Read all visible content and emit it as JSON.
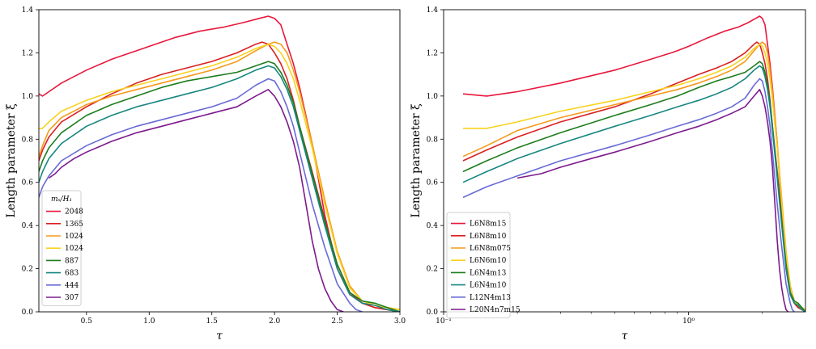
{
  "chart_data": [
    {
      "type": "line",
      "xscale": "linear",
      "xlim": [
        0.12,
        3.0
      ],
      "ylim": [
        0.0,
        1.4
      ],
      "xlabel": "τ",
      "ylabel": "Length parameter ξ",
      "xticks": [
        0.5,
        1.0,
        1.5,
        2.0,
        2.5,
        3.0
      ],
      "xtick_labels": [
        "0.5",
        "1.0",
        "1.5",
        "2.0",
        "2.5",
        "3.0"
      ],
      "yticks": [
        0.0,
        0.2,
        0.4,
        0.6,
        0.8,
        1.0,
        1.2,
        1.4
      ],
      "ytick_labels": [
        "0.0",
        "0.2",
        "0.4",
        "0.6",
        "0.8",
        "1.0",
        "1.2",
        "1.4"
      ],
      "legend_title": "mₛ/H₁",
      "legend_position": "lower-left",
      "series": [
        {
          "name": "2048",
          "color": "#e8173c",
          "x": [
            0.12,
            0.15,
            0.2,
            0.3,
            0.5,
            0.7,
            0.85,
            0.9,
            1.0,
            1.2,
            1.4,
            1.6,
            1.75,
            1.88,
            1.95,
            2.0,
            2.05,
            2.1,
            2.15,
            2.2,
            2.3,
            2.4,
            2.5,
            2.6,
            2.7,
            2.8,
            2.9,
            3.0
          ],
          "y": [
            1.01,
            1.0,
            1.02,
            1.06,
            1.12,
            1.17,
            1.2,
            1.21,
            1.23,
            1.27,
            1.3,
            1.32,
            1.34,
            1.36,
            1.37,
            1.36,
            1.33,
            1.24,
            1.15,
            1.04,
            0.78,
            0.45,
            0.2,
            0.08,
            0.04,
            0.02,
            0.01,
            0.0
          ]
        },
        {
          "name": "1365",
          "color": "#d92020",
          "x": [
            0.12,
            0.15,
            0.2,
            0.3,
            0.5,
            0.7,
            0.9,
            1.1,
            1.3,
            1.5,
            1.7,
            1.85,
            1.9,
            1.95,
            2.0,
            2.05,
            2.1,
            2.15,
            2.2,
            2.3,
            2.4,
            2.5,
            2.6,
            2.7,
            2.8,
            2.9,
            3.0
          ],
          "y": [
            0.7,
            0.75,
            0.81,
            0.88,
            0.95,
            1.01,
            1.06,
            1.1,
            1.13,
            1.16,
            1.2,
            1.24,
            1.25,
            1.24,
            1.2,
            1.15,
            1.08,
            0.98,
            0.86,
            0.65,
            0.43,
            0.22,
            0.09,
            0.04,
            0.02,
            0.01,
            0.0
          ]
        },
        {
          "name": "1024",
          "color": "#f59a1a",
          "x": [
            0.12,
            0.15,
            0.2,
            0.3,
            0.5,
            0.7,
            0.9,
            1.1,
            1.3,
            1.5,
            1.7,
            1.85,
            1.95,
            2.0,
            2.05,
            2.1,
            2.15,
            2.2,
            2.3,
            2.4,
            2.5,
            2.6,
            2.7,
            2.8,
            2.9,
            3.0
          ],
          "y": [
            0.72,
            0.77,
            0.84,
            0.9,
            0.96,
            1.0,
            1.03,
            1.06,
            1.09,
            1.12,
            1.16,
            1.21,
            1.24,
            1.25,
            1.24,
            1.2,
            1.12,
            1.02,
            0.78,
            0.52,
            0.28,
            0.12,
            0.05,
            0.03,
            0.02,
            0.01
          ]
        },
        {
          "name": "1024",
          "color": "#f7d21e",
          "x": [
            0.12,
            0.15,
            0.2,
            0.3,
            0.5,
            0.7,
            0.9,
            1.1,
            1.3,
            1.5,
            1.7,
            1.85,
            1.95,
            2.0,
            2.05,
            2.1,
            2.15,
            2.2,
            2.3,
            2.4,
            2.5,
            2.6,
            2.7,
            2.8,
            2.9,
            3.0
          ],
          "y": [
            0.85,
            0.85,
            0.88,
            0.93,
            0.98,
            1.02,
            1.05,
            1.08,
            1.11,
            1.14,
            1.18,
            1.22,
            1.24,
            1.23,
            1.2,
            1.15,
            1.08,
            0.98,
            0.76,
            0.5,
            0.27,
            0.11,
            0.05,
            0.03,
            0.02,
            0.01
          ]
        },
        {
          "name": "887",
          "color": "#1d7d1d",
          "x": [
            0.12,
            0.15,
            0.2,
            0.3,
            0.5,
            0.7,
            0.9,
            1.1,
            1.3,
            1.5,
            1.7,
            1.85,
            1.95,
            2.0,
            2.05,
            2.1,
            2.15,
            2.2,
            2.3,
            2.4,
            2.5,
            2.6,
            2.7,
            2.8,
            2.9,
            3.0
          ],
          "y": [
            0.65,
            0.7,
            0.76,
            0.83,
            0.91,
            0.96,
            1.0,
            1.04,
            1.07,
            1.09,
            1.11,
            1.14,
            1.16,
            1.15,
            1.11,
            1.05,
            0.97,
            0.86,
            0.64,
            0.42,
            0.22,
            0.09,
            0.05,
            0.04,
            0.02,
            0.0
          ]
        },
        {
          "name": "683",
          "color": "#17867f",
          "x": [
            0.12,
            0.15,
            0.2,
            0.3,
            0.5,
            0.7,
            0.9,
            1.1,
            1.3,
            1.5,
            1.7,
            1.85,
            1.95,
            2.0,
            2.05,
            2.1,
            2.15,
            2.2,
            2.3,
            2.4,
            2.5,
            2.6,
            2.7,
            2.8,
            2.9,
            3.0
          ],
          "y": [
            0.6,
            0.65,
            0.71,
            0.78,
            0.86,
            0.91,
            0.95,
            0.98,
            1.01,
            1.04,
            1.08,
            1.12,
            1.14,
            1.13,
            1.09,
            1.03,
            0.95,
            0.84,
            0.62,
            0.4,
            0.2,
            0.08,
            0.04,
            0.03,
            0.01,
            0.0
          ]
        },
        {
          "name": "444",
          "color": "#6a6ad6",
          "x": [
            0.12,
            0.15,
            0.2,
            0.3,
            0.5,
            0.7,
            0.9,
            1.1,
            1.3,
            1.5,
            1.7,
            1.85,
            1.95,
            2.0,
            2.05,
            2.1,
            2.15,
            2.2,
            2.3,
            2.4,
            2.5,
            2.6,
            2.65,
            2.7
          ],
          "y": [
            0.53,
            0.58,
            0.63,
            0.7,
            0.77,
            0.82,
            0.86,
            0.89,
            0.92,
            0.95,
            0.99,
            1.05,
            1.08,
            1.07,
            1.02,
            0.95,
            0.86,
            0.74,
            0.5,
            0.3,
            0.13,
            0.04,
            0.01,
            0.0
          ]
        },
        {
          "name": "307",
          "color": "#7d1a8c",
          "x": [
            0.2,
            0.25,
            0.3,
            0.4,
            0.5,
            0.7,
            0.9,
            1.1,
            1.3,
            1.5,
            1.7,
            1.85,
            1.95,
            2.0,
            2.05,
            2.1,
            2.15,
            2.2,
            2.25,
            2.3,
            2.35,
            2.4,
            2.45,
            2.5,
            2.55
          ],
          "y": [
            0.62,
            0.64,
            0.67,
            0.71,
            0.74,
            0.79,
            0.83,
            0.86,
            0.89,
            0.92,
            0.95,
            1.0,
            1.03,
            1.0,
            0.95,
            0.88,
            0.79,
            0.67,
            0.5,
            0.33,
            0.2,
            0.11,
            0.05,
            0.01,
            0.0
          ]
        }
      ]
    },
    {
      "type": "line",
      "xscale": "log",
      "xlim": [
        0.1,
        3.0
      ],
      "ylim": [
        0.0,
        1.4
      ],
      "xlabel": "τ",
      "ylabel": "Length parameter ξ",
      "xticks": [
        0.1,
        1.0
      ],
      "xtick_labels": [
        "10⁻¹",
        "10⁰"
      ],
      "yticks": [
        0.0,
        0.2,
        0.4,
        0.6,
        0.8,
        1.0,
        1.2,
        1.4
      ],
      "ytick_labels": [
        "0.0",
        "0.2",
        "0.4",
        "0.6",
        "0.8",
        "1.0",
        "1.2",
        "1.4"
      ],
      "legend_position": "lower-left",
      "series": [
        {
          "name": "L6N8m15",
          "color": "#e8173c",
          "x": [
            0.12,
            0.15,
            0.2,
            0.3,
            0.5,
            0.7,
            0.85,
            0.9,
            1.0,
            1.2,
            1.4,
            1.6,
            1.75,
            1.88,
            1.95,
            2.0,
            2.05,
            2.1,
            2.15,
            2.2,
            2.3,
            2.4,
            2.5,
            2.6,
            2.7,
            2.8,
            2.9,
            3.0
          ],
          "y": [
            1.01,
            1.0,
            1.02,
            1.06,
            1.12,
            1.17,
            1.2,
            1.21,
            1.23,
            1.27,
            1.3,
            1.32,
            1.34,
            1.36,
            1.37,
            1.36,
            1.33,
            1.24,
            1.15,
            1.04,
            0.78,
            0.45,
            0.2,
            0.08,
            0.04,
            0.02,
            0.01,
            0.0
          ]
        },
        {
          "name": "L6N8m10",
          "color": "#d92020",
          "x": [
            0.12,
            0.15,
            0.2,
            0.3,
            0.5,
            0.7,
            0.9,
            1.1,
            1.3,
            1.5,
            1.7,
            1.85,
            1.9,
            1.95,
            2.0,
            2.05,
            2.1,
            2.15,
            2.2,
            2.3,
            2.4,
            2.5,
            2.6,
            2.7,
            2.8,
            2.9,
            3.0
          ],
          "y": [
            0.7,
            0.75,
            0.81,
            0.88,
            0.95,
            1.01,
            1.06,
            1.1,
            1.13,
            1.16,
            1.2,
            1.24,
            1.25,
            1.24,
            1.2,
            1.15,
            1.08,
            0.98,
            0.86,
            0.65,
            0.43,
            0.22,
            0.09,
            0.04,
            0.02,
            0.01,
            0.0
          ]
        },
        {
          "name": "L6N8m075",
          "color": "#f59a1a",
          "x": [
            0.12,
            0.15,
            0.2,
            0.3,
            0.5,
            0.7,
            0.9,
            1.1,
            1.3,
            1.5,
            1.7,
            1.85,
            1.95,
            2.0,
            2.05,
            2.1,
            2.15,
            2.2,
            2.3,
            2.4,
            2.5,
            2.6,
            2.7,
            2.8,
            2.9,
            3.0
          ],
          "y": [
            0.72,
            0.77,
            0.84,
            0.9,
            0.96,
            1.0,
            1.03,
            1.06,
            1.09,
            1.12,
            1.16,
            1.21,
            1.24,
            1.25,
            1.24,
            1.2,
            1.12,
            1.02,
            0.78,
            0.52,
            0.28,
            0.12,
            0.05,
            0.03,
            0.02,
            0.01
          ]
        },
        {
          "name": "L6N6m10",
          "color": "#f7d21e",
          "x": [
            0.12,
            0.15,
            0.2,
            0.3,
            0.5,
            0.7,
            0.9,
            1.1,
            1.3,
            1.5,
            1.7,
            1.85,
            1.95,
            2.0,
            2.05,
            2.1,
            2.15,
            2.2,
            2.3,
            2.4,
            2.5,
            2.6,
            2.7,
            2.8,
            2.9,
            3.0
          ],
          "y": [
            0.85,
            0.85,
            0.88,
            0.93,
            0.98,
            1.02,
            1.05,
            1.08,
            1.11,
            1.14,
            1.18,
            1.22,
            1.24,
            1.23,
            1.2,
            1.15,
            1.08,
            0.98,
            0.76,
            0.5,
            0.27,
            0.11,
            0.05,
            0.03,
            0.02,
            0.01
          ]
        },
        {
          "name": "L6N4m13",
          "color": "#1d7d1d",
          "x": [
            0.12,
            0.15,
            0.2,
            0.3,
            0.5,
            0.7,
            0.9,
            1.1,
            1.3,
            1.5,
            1.7,
            1.85,
            1.95,
            2.0,
            2.05,
            2.1,
            2.15,
            2.2,
            2.3,
            2.4,
            2.5,
            2.6,
            2.7,
            2.8,
            2.9,
            3.0
          ],
          "y": [
            0.65,
            0.7,
            0.76,
            0.83,
            0.91,
            0.96,
            1.0,
            1.04,
            1.07,
            1.09,
            1.11,
            1.14,
            1.16,
            1.15,
            1.11,
            1.05,
            0.97,
            0.86,
            0.64,
            0.42,
            0.22,
            0.09,
            0.05,
            0.04,
            0.02,
            0.0
          ]
        },
        {
          "name": "L6N4m10",
          "color": "#17867f",
          "x": [
            0.12,
            0.15,
            0.2,
            0.3,
            0.5,
            0.7,
            0.9,
            1.1,
            1.3,
            1.5,
            1.7,
            1.85,
            1.95,
            2.0,
            2.05,
            2.1,
            2.15,
            2.2,
            2.3,
            2.4,
            2.5,
            2.6,
            2.7,
            2.8,
            2.9,
            3.0
          ],
          "y": [
            0.6,
            0.65,
            0.71,
            0.78,
            0.86,
            0.91,
            0.95,
            0.98,
            1.01,
            1.04,
            1.08,
            1.12,
            1.14,
            1.13,
            1.09,
            1.03,
            0.95,
            0.84,
            0.62,
            0.4,
            0.2,
            0.08,
            0.04,
            0.03,
            0.01,
            0.0
          ]
        },
        {
          "name": "L12N4m13",
          "color": "#6a6ad6",
          "x": [
            0.12,
            0.15,
            0.2,
            0.3,
            0.5,
            0.7,
            0.9,
            1.1,
            1.3,
            1.5,
            1.7,
            1.85,
            1.95,
            2.0,
            2.05,
            2.1,
            2.15,
            2.2,
            2.3,
            2.4,
            2.5,
            2.6,
            2.65,
            2.7
          ],
          "y": [
            0.53,
            0.58,
            0.63,
            0.7,
            0.77,
            0.82,
            0.86,
            0.89,
            0.92,
            0.95,
            0.99,
            1.05,
            1.08,
            1.07,
            1.02,
            0.95,
            0.86,
            0.74,
            0.5,
            0.3,
            0.13,
            0.04,
            0.01,
            0.0
          ]
        },
        {
          "name": "L20N4n7m15",
          "color": "#7d1a8c",
          "x": [
            0.2,
            0.25,
            0.3,
            0.4,
            0.5,
            0.7,
            0.9,
            1.1,
            1.3,
            1.5,
            1.7,
            1.85,
            1.95,
            2.0,
            2.05,
            2.1,
            2.15,
            2.2,
            2.25,
            2.3,
            2.35,
            2.4,
            2.45,
            2.5,
            2.55
          ],
          "y": [
            0.62,
            0.64,
            0.67,
            0.71,
            0.74,
            0.79,
            0.83,
            0.86,
            0.89,
            0.92,
            0.95,
            1.0,
            1.03,
            1.0,
            0.95,
            0.88,
            0.79,
            0.67,
            0.5,
            0.33,
            0.2,
            0.11,
            0.05,
            0.01,
            0.0
          ]
        }
      ]
    }
  ]
}
